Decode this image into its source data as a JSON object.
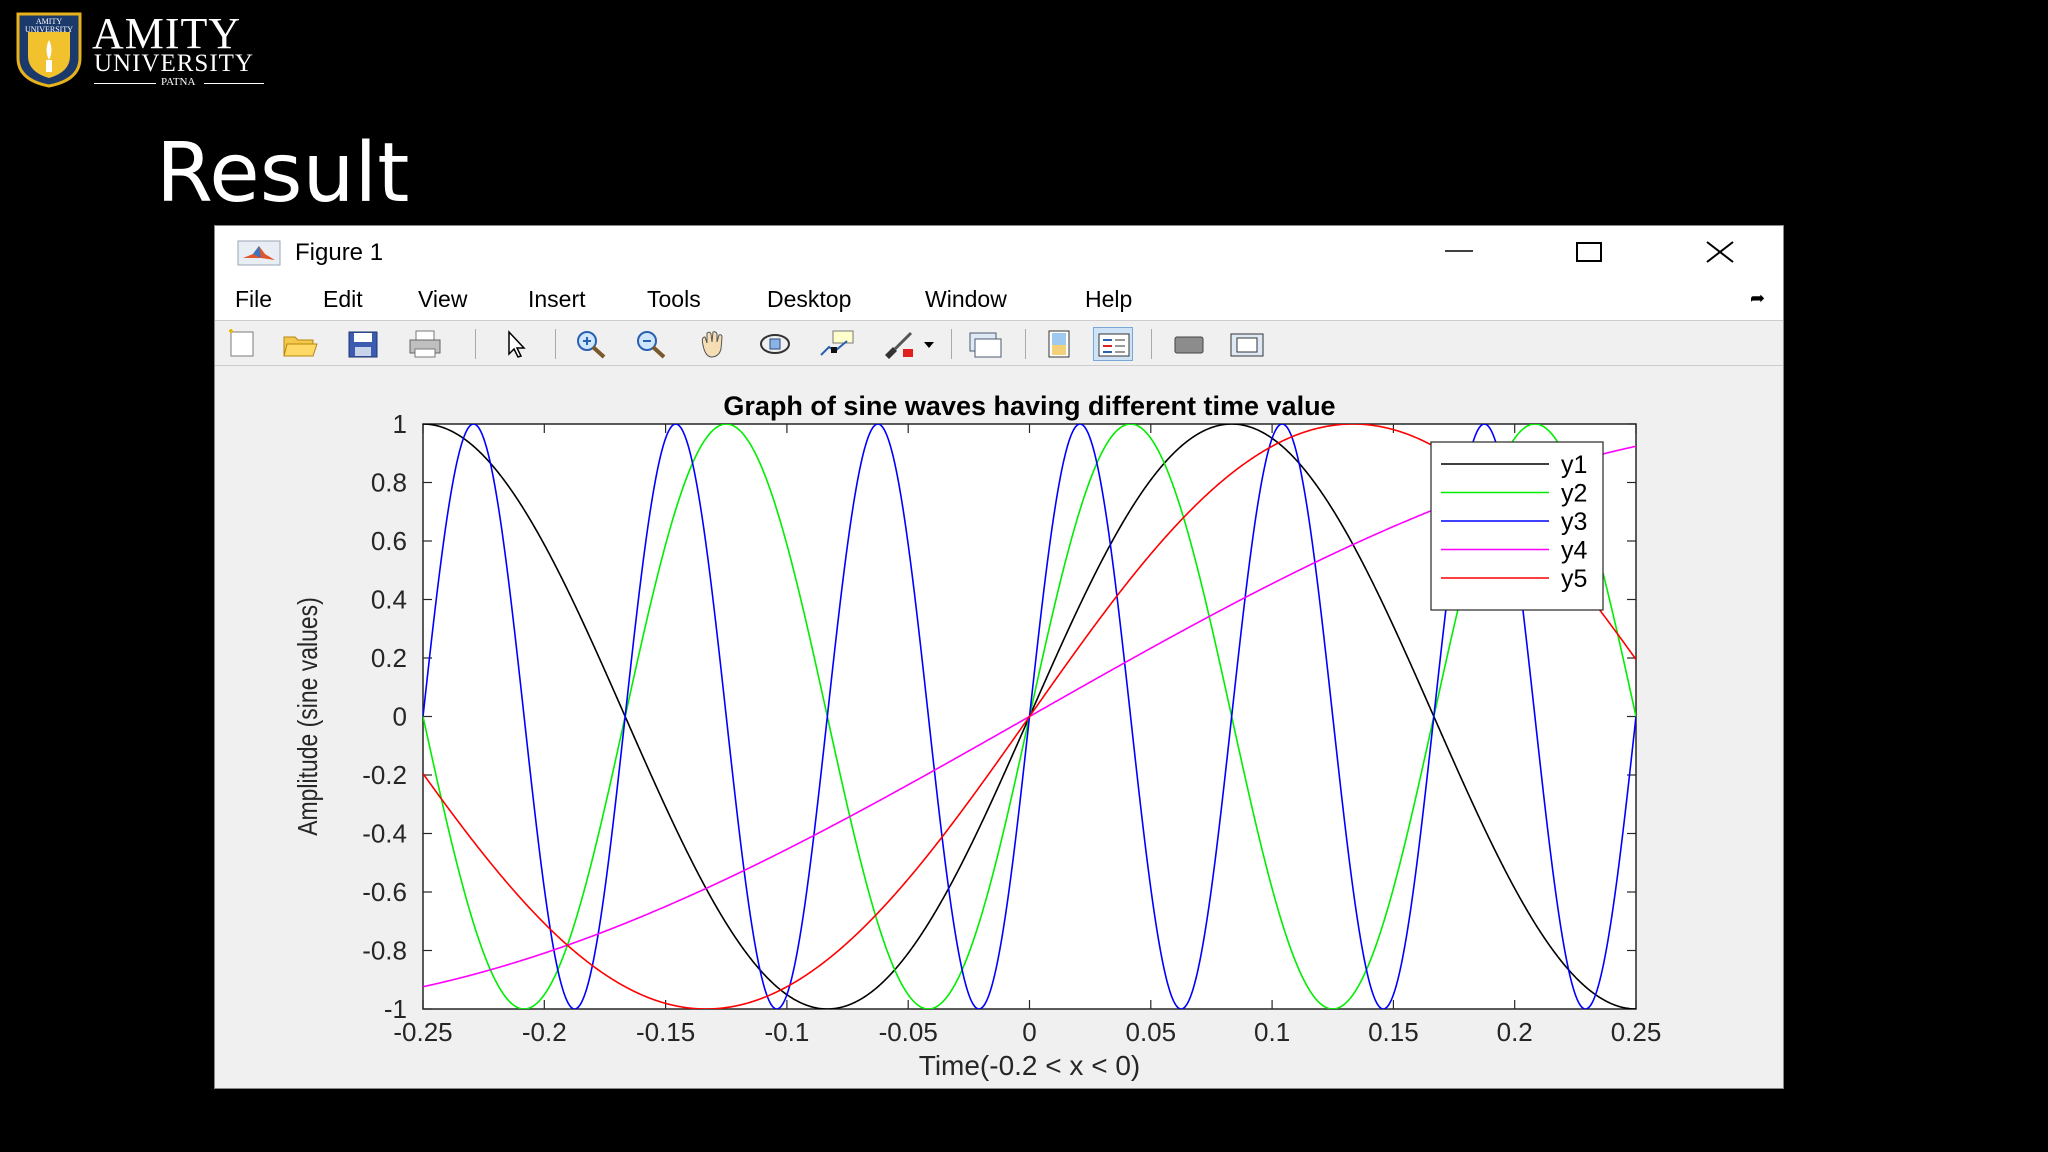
{
  "logo": {
    "name": "AMITY",
    "university": "UNIVERSITY",
    "city": "PATNA",
    "seal_text": "AMITY UNIVERSITY"
  },
  "slide": {
    "title": "Result"
  },
  "window": {
    "title": "Figure 1",
    "menu": [
      "File",
      "Edit",
      "View",
      "Insert",
      "Tools",
      "Desktop",
      "Window",
      "Help"
    ],
    "toolbar": [
      {
        "name": "new-figure-icon"
      },
      {
        "name": "open-file-icon"
      },
      {
        "name": "save-icon"
      },
      {
        "name": "print-icon"
      },
      {
        "name": "pointer-icon"
      },
      {
        "name": "zoom-in-icon"
      },
      {
        "name": "zoom-out-icon"
      },
      {
        "name": "pan-icon"
      },
      {
        "name": "rotate-3d-icon"
      },
      {
        "name": "data-cursor-icon"
      },
      {
        "name": "brush-icon"
      },
      {
        "name": "link-plot-icon"
      },
      {
        "name": "colorbar-icon"
      },
      {
        "name": "legend-icon"
      },
      {
        "name": "hide-plot-tools-icon"
      },
      {
        "name": "show-plot-tools-icon"
      }
    ],
    "colors": {
      "background": "#f0f0f0",
      "axes": "#ffffff"
    }
  },
  "chart_data": {
    "type": "line",
    "title": "Graph of sine waves having different time value",
    "xlabel": "Time(-0.2 < x < 0)",
    "ylabel": "Amplitude (sine values)",
    "xlim": [
      -0.25,
      0.25
    ],
    "ylim": [
      -1,
      1
    ],
    "xticks": [
      "-0.25",
      "-0.2",
      "-0.15",
      "-0.1",
      "-0.05",
      "0",
      "0.05",
      "0.1",
      "0.15",
      "0.2",
      "0.25"
    ],
    "yticks": [
      "-1",
      "-0.8",
      "-0.6",
      "-0.4",
      "-0.2",
      "0",
      "0.2",
      "0.4",
      "0.6",
      "0.8",
      "1"
    ],
    "grid": false,
    "legend_position": "top-right",
    "series": [
      {
        "name": "y1",
        "color": "#000000",
        "function": "sin(2*pi*3*t)",
        "frequency": 3
      },
      {
        "name": "y2",
        "color": "#00ee00",
        "function": "sin(2*pi*6*t)",
        "frequency": 6
      },
      {
        "name": "y3",
        "color": "#0000ff",
        "function": "sin(2*pi*12*t)",
        "frequency": 12
      },
      {
        "name": "y4",
        "color": "#ff00ff",
        "function": "sin(2*pi*0.75*t)",
        "frequency": 0.75
      },
      {
        "name": "y5",
        "color": "#ff0000",
        "function": "sin(2*pi*1.875*t)",
        "frequency": 1.875
      }
    ]
  }
}
